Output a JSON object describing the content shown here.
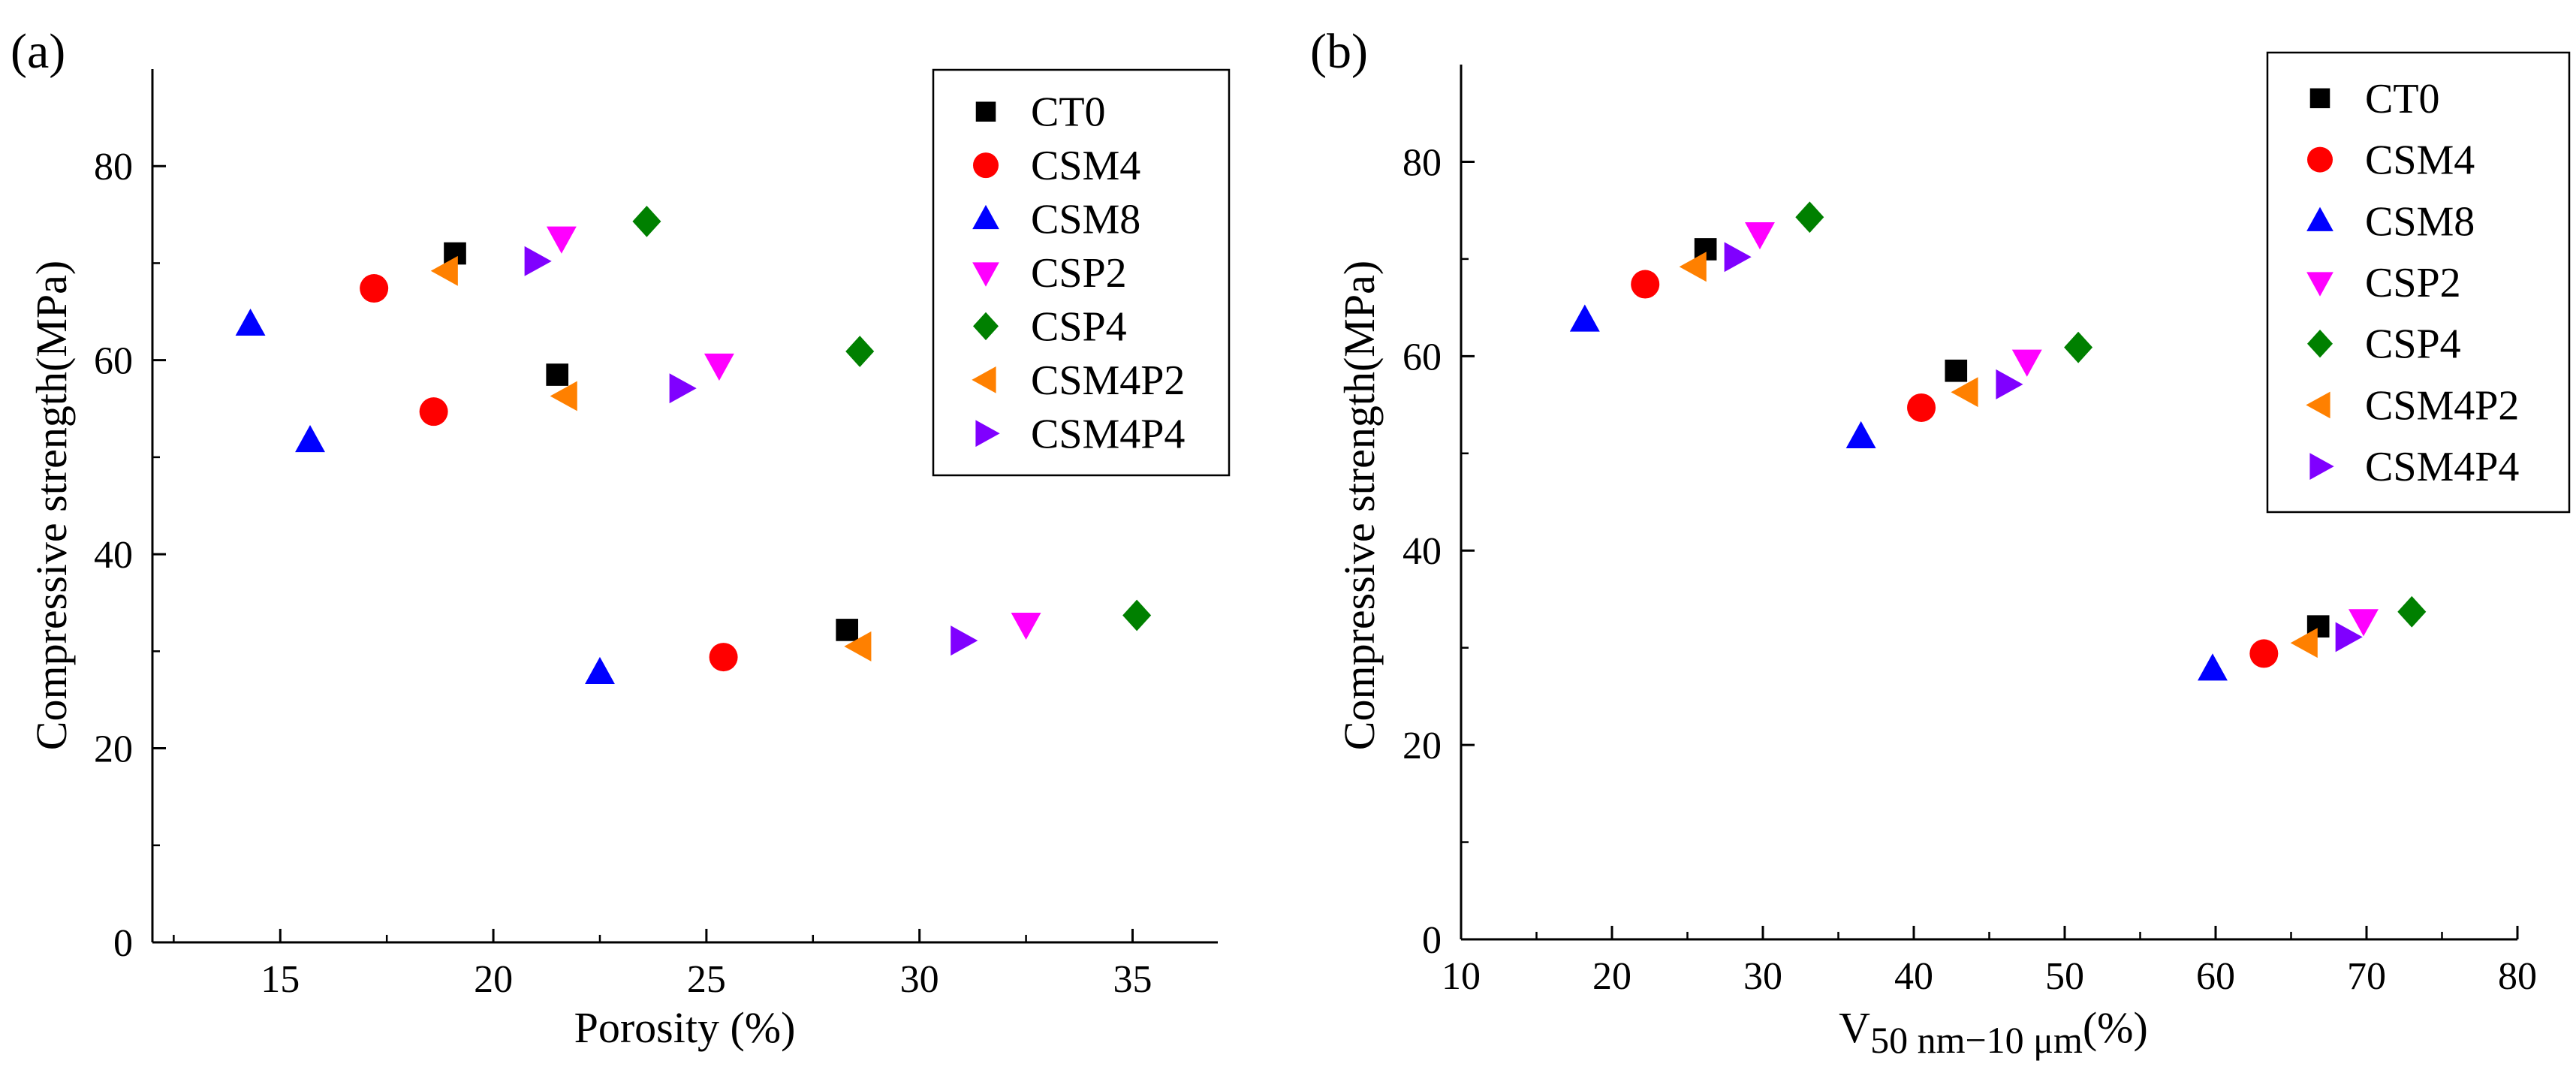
{
  "colors": {
    "CT0": "#000000",
    "CSM4": "#ff0000",
    "CSM8": "#0000ff",
    "CSP2": "#ff00ff",
    "CSP4": "#008000",
    "CSM4P2": "#ff8000",
    "CSM4P4": "#8000ff"
  },
  "markers": {
    "CT0": "square",
    "CSM4": "circle",
    "CSM8": "triangle-up",
    "CSP2": "triangle-down",
    "CSP4": "diamond",
    "CSM4P2": "triangle-left",
    "CSM4P4": "triangle-right"
  },
  "chart_data": [
    {
      "type": "scatter",
      "panel_label": "(a)",
      "title": "",
      "xlabel": "Porosity  (%)",
      "ylabel": "Compressive strength(MPa)",
      "xlim": [
        12,
        37
      ],
      "ylim": [
        0,
        90
      ],
      "xticks": [
        15,
        20,
        25,
        30,
        35
      ],
      "yticks": [
        0,
        20,
        40,
        60,
        80
      ],
      "legend_position": "top-right",
      "series": [
        {
          "name": "CT0",
          "points": [
            [
              19.1,
              71.0
            ],
            [
              21.5,
              58.5
            ],
            [
              28.3,
              32.2
            ]
          ]
        },
        {
          "name": "CSM4",
          "points": [
            [
              17.2,
              67.4
            ],
            [
              18.6,
              54.7
            ],
            [
              25.4,
              29.4
            ]
          ]
        },
        {
          "name": "CSM8",
          "points": [
            [
              14.3,
              63.7
            ],
            [
              15.7,
              51.7
            ],
            [
              22.5,
              27.8
            ]
          ]
        },
        {
          "name": "CSP2",
          "points": [
            [
              21.6,
              72.6
            ],
            [
              25.3,
              59.5
            ],
            [
              32.5,
              32.8
            ]
          ]
        },
        {
          "name": "CSP4",
          "points": [
            [
              23.6,
              74.3
            ],
            [
              28.6,
              60.9
            ],
            [
              35.1,
              33.7
            ]
          ]
        },
        {
          "name": "CSM4P2",
          "points": [
            [
              18.9,
              69.2
            ],
            [
              21.7,
              56.3
            ],
            [
              28.6,
              30.5
            ]
          ]
        },
        {
          "name": "CSM4P4",
          "points": [
            [
              21.0,
              70.2
            ],
            [
              24.4,
              57.1
            ],
            [
              31.0,
              31.1
            ]
          ]
        }
      ]
    },
    {
      "type": "scatter",
      "panel_label": "(b)",
      "title": "",
      "xlabel_main": "V",
      "xlabel_sub": "50 nm−10 μm",
      "xlabel_unit": "(%)",
      "ylabel": "Compressive strength(MPa)",
      "xlim": [
        10,
        80
      ],
      "ylim": [
        0,
        90
      ],
      "xticks": [
        10,
        20,
        30,
        40,
        50,
        60,
        70,
        80
      ],
      "yticks": [
        0,
        20,
        40,
        60,
        80
      ],
      "legend_position": "top-right",
      "series": [
        {
          "name": "CT0",
          "points": [
            [
              26.2,
              71.0
            ],
            [
              42.8,
              58.5
            ],
            [
              66.8,
              32.2
            ]
          ]
        },
        {
          "name": "CSM4",
          "points": [
            [
              22.2,
              67.4
            ],
            [
              40.5,
              54.7
            ],
            [
              63.2,
              29.4
            ]
          ]
        },
        {
          "name": "CSM8",
          "points": [
            [
              18.2,
              63.7
            ],
            [
              36.5,
              51.7
            ],
            [
              59.8,
              27.8
            ]
          ]
        },
        {
          "name": "CSP2",
          "points": [
            [
              29.8,
              72.6
            ],
            [
              47.5,
              59.5
            ],
            [
              69.8,
              32.8
            ]
          ]
        },
        {
          "name": "CSP4",
          "points": [
            [
              33.1,
              74.3
            ],
            [
              50.9,
              60.9
            ],
            [
              73.0,
              33.7
            ]
          ]
        },
        {
          "name": "CSM4P2",
          "points": [
            [
              25.5,
              69.2
            ],
            [
              43.5,
              56.3
            ],
            [
              66.0,
              30.5
            ]
          ]
        },
        {
          "name": "CSM4P4",
          "points": [
            [
              28.2,
              70.2
            ],
            [
              46.2,
              57.1
            ],
            [
              68.7,
              31.1
            ]
          ]
        }
      ]
    }
  ]
}
